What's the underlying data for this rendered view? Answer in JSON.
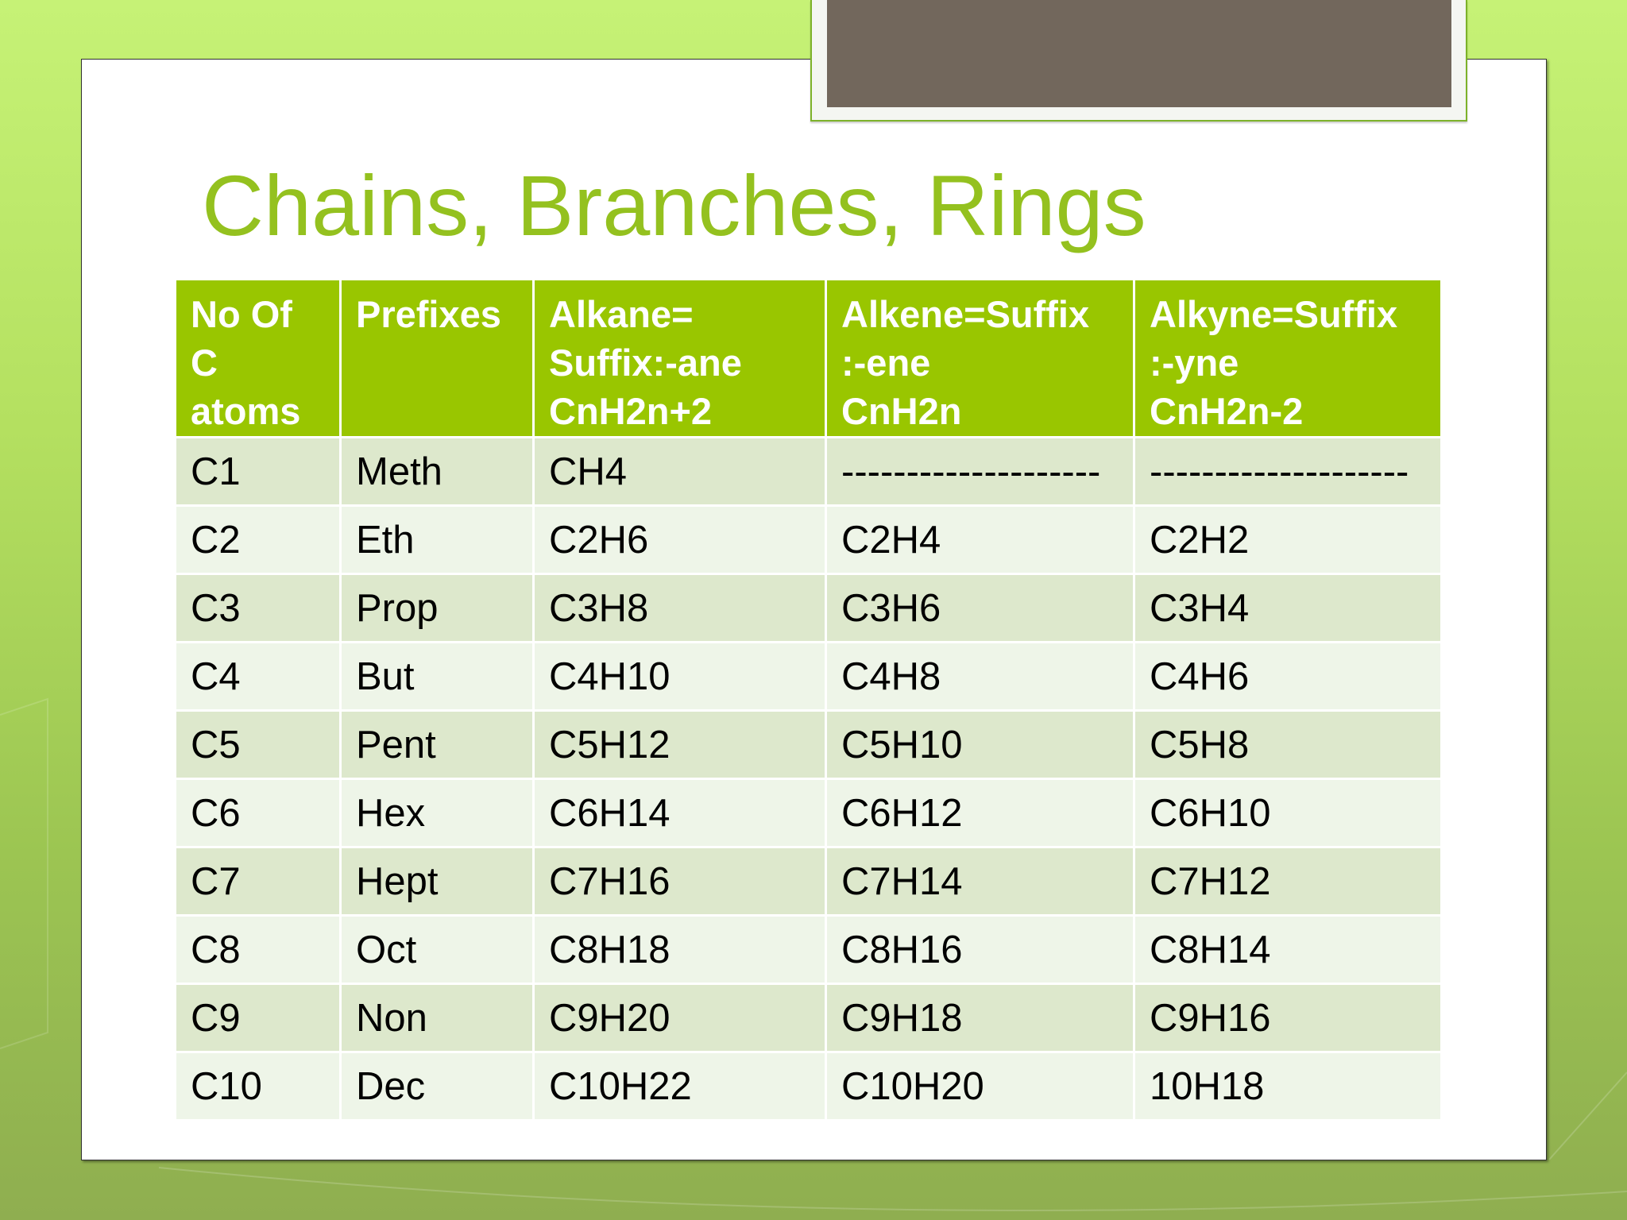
{
  "slide": {
    "title": "Chains, Branches, Rings",
    "colors": {
      "accent": "#99c600",
      "title": "#94c11f",
      "row_odd": "#dde8cc",
      "row_even": "#eef5e8",
      "placeholder_box": "#72675c"
    }
  },
  "table": {
    "headers": [
      [
        "No Of",
        "C",
        "atoms"
      ],
      [
        "Prefixes"
      ],
      [
        "Alkane=",
        "Suffix:-ane",
        "CnH2n+2"
      ],
      [
        "Alkene=Suffix",
        ":-ene",
        "CnH2n"
      ],
      [
        "Alkyne=Suffix",
        ":-yne",
        "CnH2n-2"
      ]
    ],
    "rows": [
      [
        "C1",
        "Meth",
        "CH4",
        "--------------------",
        "--------------------"
      ],
      [
        "C2",
        "Eth",
        "C2H6",
        "C2H4",
        "C2H2"
      ],
      [
        "C3",
        "Prop",
        "C3H8",
        "C3H6",
        "C3H4"
      ],
      [
        "C4",
        "But",
        "C4H10",
        "C4H8",
        "C4H6"
      ],
      [
        "C5",
        "Pent",
        "C5H12",
        "C5H10",
        "C5H8"
      ],
      [
        "C6",
        "Hex",
        "C6H14",
        "C6H12",
        "C6H10"
      ],
      [
        "C7",
        "Hept",
        "C7H16",
        "C7H14",
        "C7H12"
      ],
      [
        "C8",
        "Oct",
        "C8H18",
        "C8H16",
        "C8H14"
      ],
      [
        "C9",
        "Non",
        "C9H20",
        "C9H18",
        "C9H16"
      ],
      [
        "C10",
        "Dec",
        "C10H22",
        "C10H20",
        "10H18"
      ]
    ]
  }
}
